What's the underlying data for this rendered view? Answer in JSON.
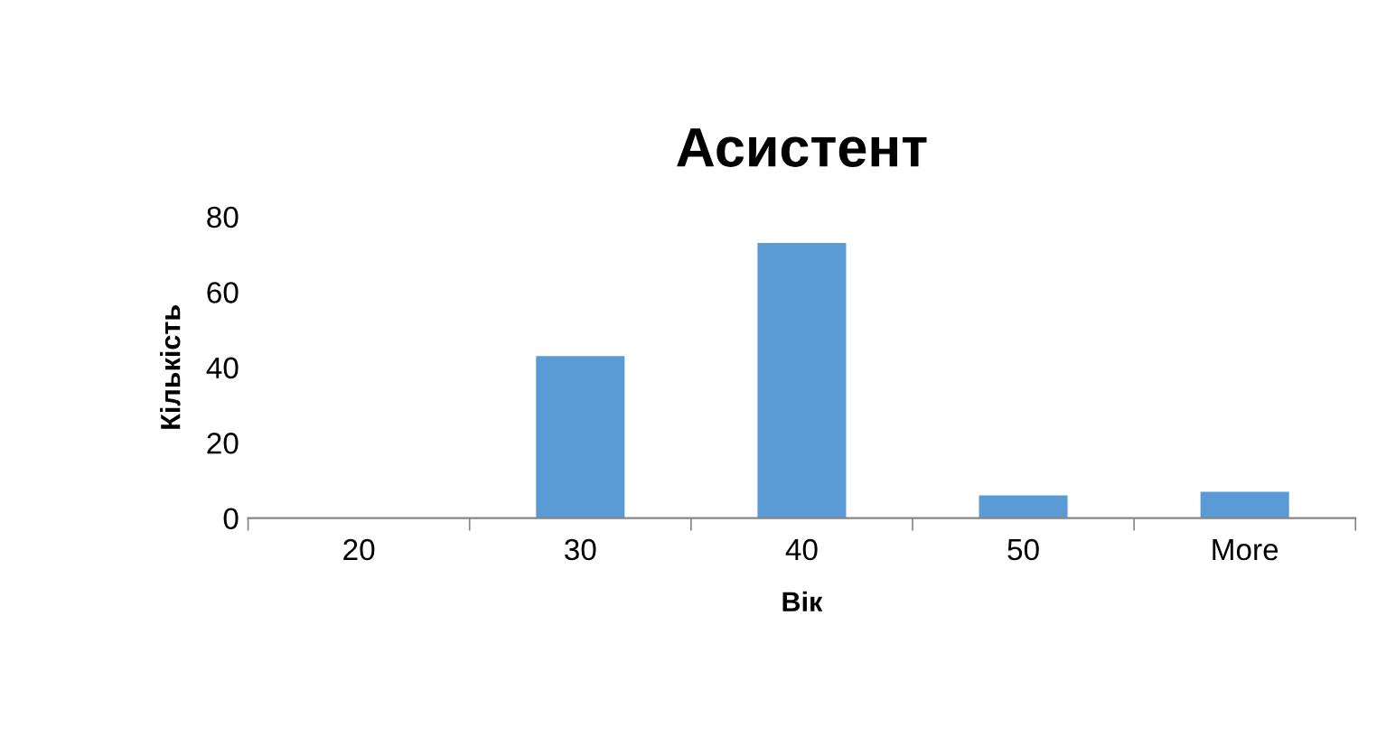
{
  "chart_data": {
    "type": "bar",
    "title": "Асистент",
    "xlabel": "Вік",
    "ylabel": "Кількість",
    "categories": [
      "20",
      "30",
      "40",
      "50",
      "More"
    ],
    "values": [
      0,
      43,
      73,
      6,
      7
    ],
    "color": "#5b9bd5",
    "ylim": [
      0,
      80
    ],
    "yticks": [
      0,
      20,
      40,
      60,
      80
    ],
    "grid": false,
    "legend": false
  }
}
